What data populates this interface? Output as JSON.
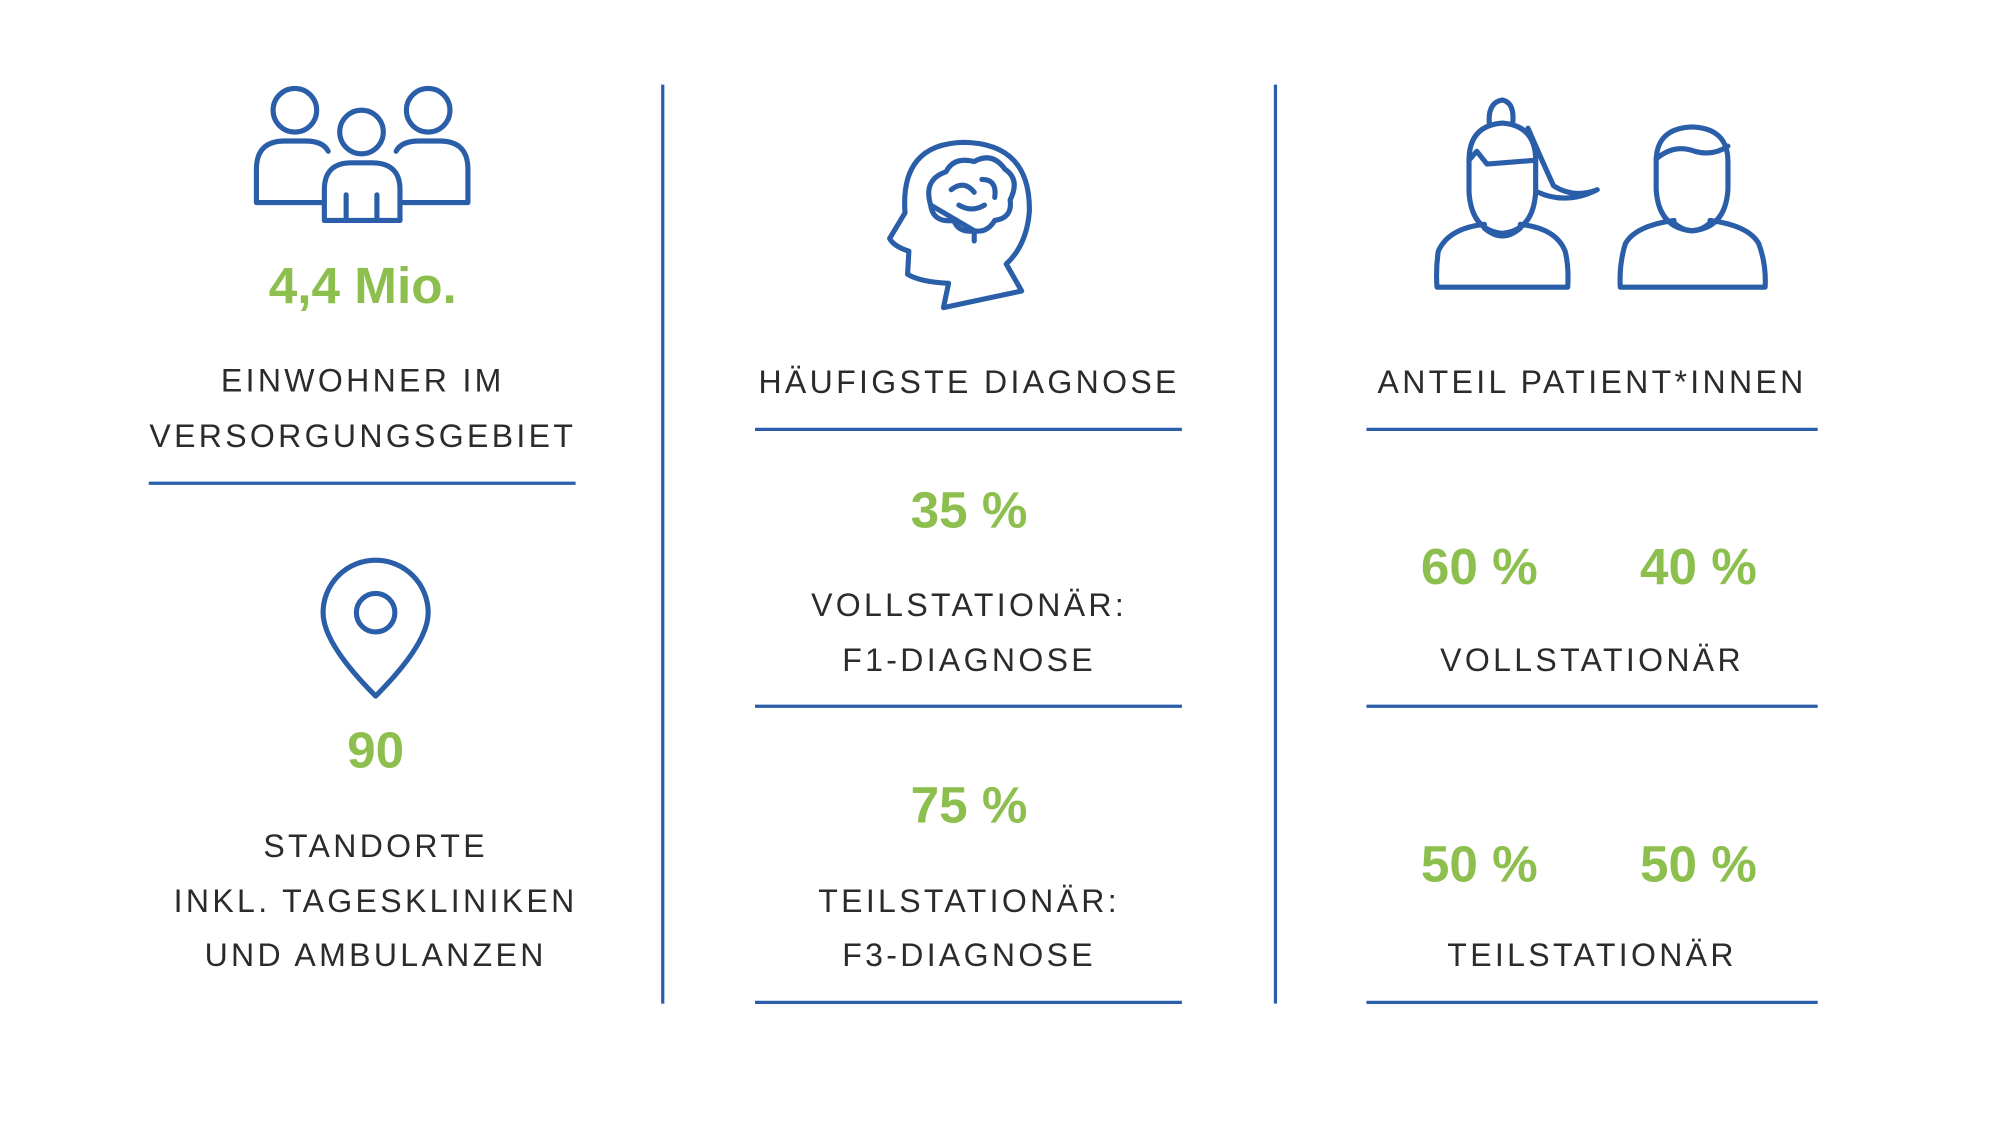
{
  "left": {
    "population": {
      "value": "4,4 Mio.",
      "label": [
        "EINWOHNER IM",
        "VERSORGUNGSGEBIET"
      ]
    },
    "locations": {
      "value": "90",
      "label": [
        "STANDORTE",
        "INKL. TAGESKLINIKEN",
        "UND AMBULANZEN"
      ]
    }
  },
  "middle": {
    "heading": "HÄUFIGSTE DIAGNOSE",
    "inpatient": {
      "value": "35 %",
      "label": [
        "VOLLSTATIONÄR:",
        "F1-DIAGNOSE"
      ]
    },
    "day_patient": {
      "value": "75 %",
      "label": [
        "TEILSTATIONÄR:",
        "F3-DIAGNOSE"
      ]
    }
  },
  "right": {
    "heading": "ANTEIL PATIENT*INNEN",
    "inpatient": {
      "values": [
        "60 %",
        "40 %"
      ],
      "label": "VOLLSTATIONÄR"
    },
    "day_patient": {
      "values": [
        "50 %",
        "50 %"
      ],
      "label": "TEILSTATIONÄR"
    }
  }
}
